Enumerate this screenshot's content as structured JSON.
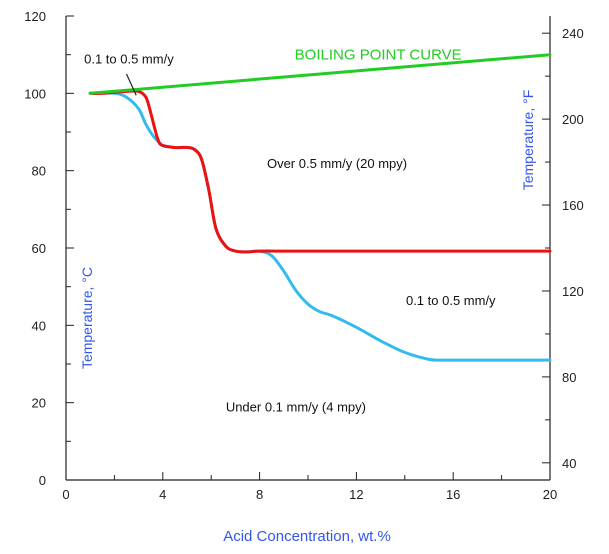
{
  "chart_data": {
    "type": "line",
    "title": "",
    "xlabel": "Acid Concentration, wt.%",
    "ylabel": "Temperature, °C",
    "y2label": "Temperature, °F",
    "xlim": [
      0,
      20
    ],
    "ylim": [
      0,
      120
    ],
    "y2lim": [
      32,
      248
    ],
    "x_ticks": [
      "0",
      "4",
      "8",
      "12",
      "16",
      "20"
    ],
    "y_ticks": [
      "0",
      "20",
      "40",
      "60",
      "80",
      "100",
      "120"
    ],
    "y2_ticks": [
      "40",
      "80",
      "120",
      "160",
      "200",
      "240"
    ],
    "grid": false,
    "colors": {
      "boiling": "#22cc22",
      "red_series": "#ee1111",
      "blue_series": "#33bbee",
      "axis_label": "#3355ee",
      "tick_text": "#222222"
    },
    "series": [
      {
        "name": "BOILING POINT CURVE",
        "color": "#22cc22",
        "x": [
          1,
          20
        ],
        "y": [
          100,
          110
        ]
      },
      {
        "color": "#ee1111",
        "x": [
          1,
          1.5,
          2.5,
          3,
          3.3,
          3.5,
          3.8,
          4.0,
          4.5,
          5.0,
          5.3,
          5.6,
          5.9,
          6.2,
          6.6,
          7.0,
          7.5,
          8.0,
          9.0,
          10,
          12,
          14,
          16,
          18,
          20
        ],
        "y": [
          100,
          100,
          100.5,
          100.5,
          99,
          95,
          88,
          86.5,
          86,
          86,
          85.5,
          83,
          75,
          65,
          60.5,
          59.2,
          59,
          59.2,
          59.2,
          59.2,
          59.2,
          59.2,
          59.2,
          59.2,
          59.2
        ]
      },
      {
        "color": "#33bbee",
        "x": [
          1,
          2,
          2.5,
          3.0,
          3.3,
          3.6,
          3.9,
          4.0,
          4.5,
          5.0,
          5.3,
          5.6,
          5.9,
          6.2,
          6.6,
          7.0,
          7.5,
          8.0,
          8.5,
          9.0,
          9.5,
          10,
          10.5,
          11,
          12,
          13,
          14,
          15,
          15.5,
          16,
          17,
          18,
          19,
          20
        ],
        "y": [
          100,
          100,
          99,
          96,
          92,
          89,
          87,
          86.5,
          86,
          86,
          85.5,
          83,
          75,
          65,
          60.5,
          59.2,
          59,
          59.2,
          58,
          54,
          49,
          45.5,
          43.5,
          42.5,
          39.5,
          36,
          33,
          31.2,
          31,
          31,
          31,
          31,
          31,
          31
        ]
      }
    ],
    "annotations": [
      {
        "text": "0.1 to 0.5 mm/y",
        "x": 2.6,
        "y": 109,
        "anchor": "middle",
        "color": "#111111"
      },
      {
        "text": "Over 0.5 mm/y (20 mpy)",
        "x": 11.2,
        "y": 82,
        "anchor": "middle",
        "color": "#111111"
      },
      {
        "text": "0.1 to 0.5 mm/y",
        "x": 15.9,
        "y": 46.5,
        "anchor": "middle",
        "color": "#111111"
      },
      {
        "text": "Under 0.1 mm/y (4 mpy)",
        "x": 9.5,
        "y": 19,
        "anchor": "middle",
        "color": "#111111"
      },
      {
        "text": "BOILING POINT CURVE",
        "x": 12.9,
        "y": 110,
        "anchor": "middle",
        "color": "#22cc22"
      }
    ],
    "pointer": {
      "from": [
        2.5,
        105
      ],
      "to": [
        2.9,
        99.5
      ]
    }
  }
}
